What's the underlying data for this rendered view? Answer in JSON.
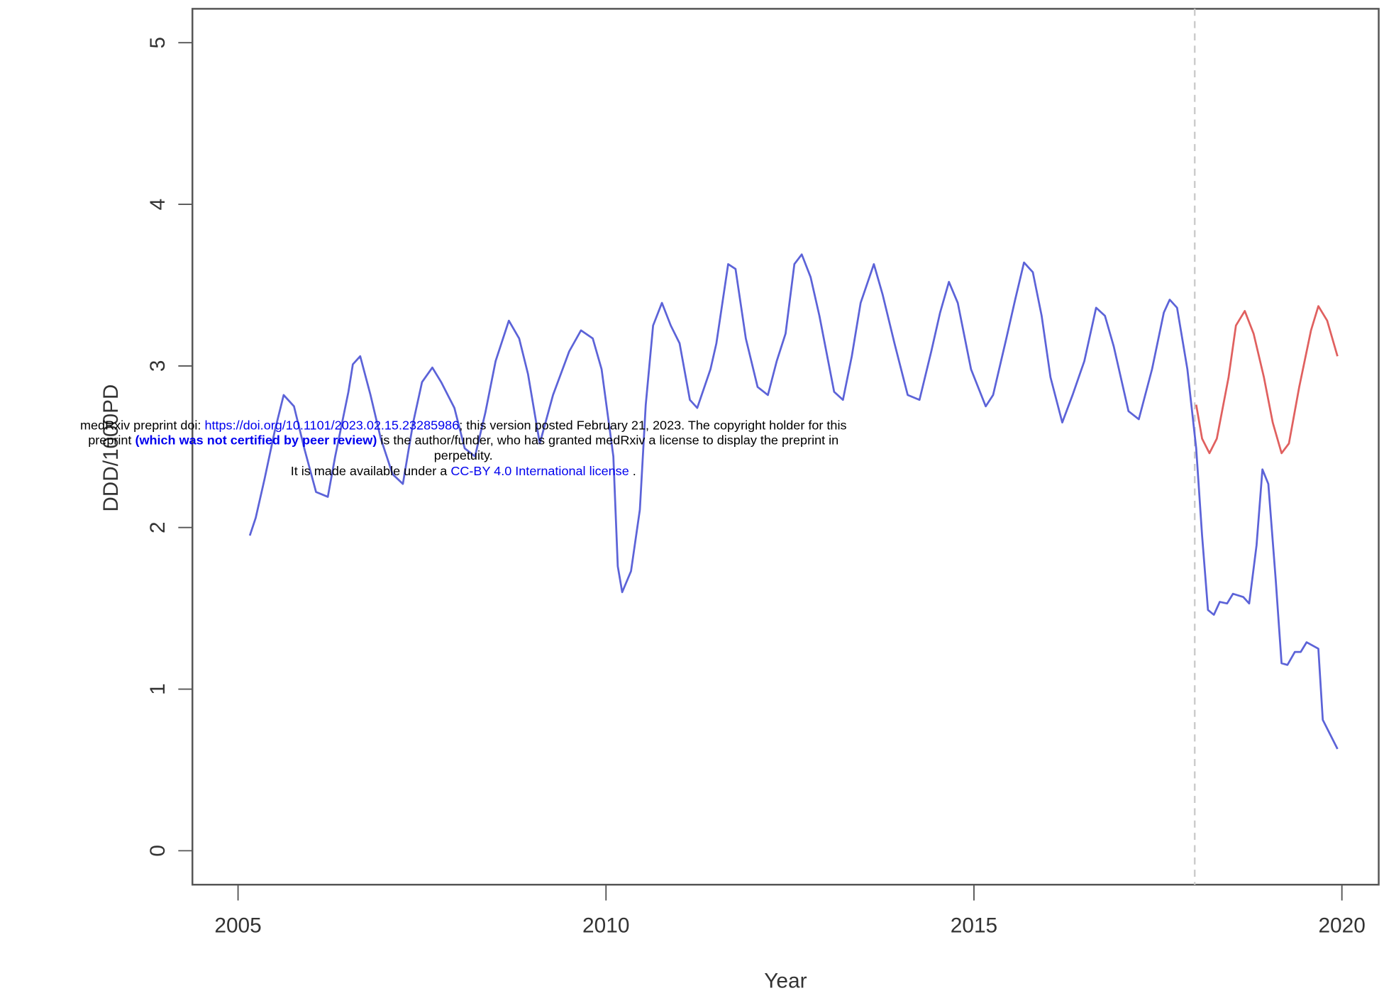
{
  "chart_data": {
    "type": "line",
    "x_label": "Year",
    "y_label": "DDD/1000PD",
    "xlim": [
      2004.38,
      2020.5
    ],
    "ylim": [
      -0.21,
      5.21
    ],
    "xticks": [
      2005,
      2010,
      2015,
      2020
    ],
    "yticks": [
      0,
      1,
      2,
      3,
      4,
      5
    ],
    "grid": false,
    "vline": 2018,
    "series": [
      {
        "color": "#5c63d8",
        "x": [
          2005.16,
          2005.24,
          2005.36,
          2005.5,
          2005.62,
          2005.76,
          2005.9,
          2006.06,
          2006.22,
          2006.32,
          2006.5,
          2006.56,
          2006.66,
          2006.8,
          2006.94,
          2007.1,
          2007.24,
          2007.38,
          2007.5,
          2007.64,
          2007.76,
          2007.94,
          2008.08,
          2008.22,
          2008.36,
          2008.5,
          2008.68,
          2008.82,
          2008.94,
          2009.1,
          2009.28,
          2009.5,
          2009.66,
          2009.82,
          2009.94,
          2010.1,
          2010.16,
          2010.22,
          2010.34,
          2010.46,
          2010.54,
          2010.64,
          2010.76,
          2010.88,
          2011.0,
          2011.14,
          2011.24,
          2011.42,
          2011.5,
          2011.66,
          2011.76,
          2011.9,
          2012.06,
          2012.2,
          2012.32,
          2012.44,
          2012.56,
          2012.66,
          2012.78,
          2012.9,
          2013.1,
          2013.22,
          2013.34,
          2013.46,
          2013.64,
          2013.76,
          2013.92,
          2014.1,
          2014.26,
          2014.42,
          2014.54,
          2014.66,
          2014.78,
          2014.96,
          2015.16,
          2015.26,
          2015.44,
          2015.56,
          2015.68,
          2015.8,
          2015.92,
          2016.04,
          2016.2,
          2016.34,
          2016.5,
          2016.66,
          2016.78,
          2016.9,
          2017.1,
          2017.24,
          2017.42,
          2017.58,
          2017.66,
          2017.76,
          2017.9,
          2018.02,
          2018.1,
          2018.18,
          2018.26,
          2018.34,
          2018.44,
          2018.52,
          2018.66,
          2018.74,
          2018.84,
          2018.92,
          2019.0,
          2019.1,
          2019.18,
          2019.26,
          2019.36,
          2019.44,
          2019.52,
          2019.68,
          2019.74,
          2019.94
        ],
        "values": [
          1.95,
          2.06,
          2.3,
          2.6,
          2.82,
          2.75,
          2.49,
          2.22,
          2.19,
          2.44,
          2.84,
          3.01,
          3.06,
          2.82,
          2.55,
          2.33,
          2.27,
          2.65,
          2.9,
          2.99,
          2.9,
          2.74,
          2.49,
          2.44,
          2.71,
          3.03,
          3.28,
          3.17,
          2.95,
          2.52,
          2.82,
          3.09,
          3.22,
          3.17,
          2.98,
          2.44,
          1.76,
          1.6,
          1.73,
          2.11,
          2.76,
          3.25,
          3.39,
          3.25,
          3.14,
          2.79,
          2.74,
          2.98,
          3.14,
          3.63,
          3.6,
          3.17,
          2.87,
          2.82,
          3.03,
          3.2,
          3.63,
          3.69,
          3.55,
          3.31,
          2.84,
          2.79,
          3.06,
          3.39,
          3.63,
          3.44,
          3.14,
          2.82,
          2.79,
          3.09,
          3.33,
          3.52,
          3.39,
          2.98,
          2.75,
          2.82,
          3.17,
          3.41,
          3.64,
          3.58,
          3.31,
          2.93,
          2.65,
          2.82,
          3.03,
          3.36,
          3.31,
          3.12,
          2.72,
          2.67,
          2.98,
          3.33,
          3.41,
          3.36,
          2.98,
          2.49,
          1.95,
          1.49,
          1.46,
          1.54,
          1.53,
          1.59,
          1.57,
          1.53,
          1.89,
          2.36,
          2.27,
          1.68,
          1.16,
          1.15,
          1.23,
          1.23,
          1.29,
          1.25,
          0.81,
          0.63
        ]
      },
      {
        "color": "#e0605f",
        "x": [
          2018.02,
          2018.1,
          2018.2,
          2018.3,
          2018.46,
          2018.56,
          2018.68,
          2018.8,
          2018.94,
          2019.06,
          2019.18,
          2019.28,
          2019.42,
          2019.58,
          2019.68,
          2019.8,
          2019.94
        ],
        "values": [
          2.76,
          2.55,
          2.46,
          2.55,
          2.93,
          3.25,
          3.34,
          3.2,
          2.93,
          2.65,
          2.46,
          2.52,
          2.87,
          3.22,
          3.37,
          3.28,
          3.06
        ]
      }
    ]
  },
  "watermark": {
    "lines": [
      [
        {
          "text": "medRxiv preprint doi: ",
          "style": "plain"
        },
        {
          "text": "https://doi.org/10.1101/2023.02.15.23285986",
          "style": "link"
        },
        {
          "text": "; this version posted February 21, 2023. The copyright holder for this",
          "style": "plain"
        }
      ],
      [
        {
          "text": "preprint ",
          "style": "plain"
        },
        {
          "text": "(which was not certified by peer review)",
          "style": "bold-link"
        },
        {
          "text": " is the author/funder, who has granted medRxiv a license to display the preprint in",
          "style": "plain"
        }
      ],
      [
        {
          "text": "perpetuity.",
          "style": "plain"
        }
      ],
      [
        {
          "text": "It is made available under a ",
          "style": "plain"
        },
        {
          "text": "CC-BY 4.0 International license",
          "style": "link"
        },
        {
          "text": " .",
          "style": "plain"
        }
      ]
    ]
  }
}
